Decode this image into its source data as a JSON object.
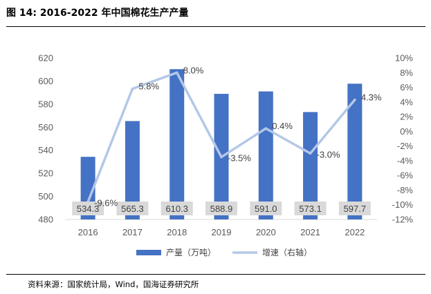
{
  "figure_title": "图 14:  2016-2022 年中国棉花生产产量",
  "source": "资料来源：国家统计局，Wind，国海证券研究所",
  "colors": {
    "bar": "#4472C4",
    "line": "#B4C7E7",
    "label_box": "#D9D9D9"
  },
  "chart_data": {
    "type": "bar",
    "categories": [
      "2016",
      "2017",
      "2018",
      "2019",
      "2020",
      "2021",
      "2022"
    ],
    "series": [
      {
        "name": "产量（万吨）",
        "axis": "left",
        "type": "bar",
        "values": [
          534.3,
          565.3,
          610.3,
          588.9,
          591.0,
          573.1,
          597.7
        ],
        "labels": [
          "534.3",
          "565.3",
          "610.3",
          "588.9",
          "591.0",
          "573.1",
          "597.7"
        ]
      },
      {
        "name": "增速（右轴）",
        "axis": "right",
        "type": "line",
        "values": [
          -9.6,
          5.8,
          8.0,
          -3.5,
          0.4,
          -3.0,
          4.3
        ],
        "labels": [
          "-9.6%",
          "5.8%",
          "8.0%",
          "-3.5%",
          "0.4%",
          "-3.0%",
          "4.3%"
        ]
      }
    ],
    "y_left": {
      "min": 480,
      "max": 620,
      "ticks": [
        "480",
        "500",
        "520",
        "540",
        "560",
        "580",
        "600",
        "620"
      ]
    },
    "y_right": {
      "min": -12,
      "max": 10,
      "ticks": [
        "-12%",
        "-10%",
        "-8%",
        "-6%",
        "-4%",
        "-2%",
        "0%",
        "2%",
        "4%",
        "6%",
        "8%",
        "10%"
      ]
    },
    "legend": [
      "产量（万吨）",
      "增速（右轴）"
    ],
    "legend_position": "bottom"
  }
}
